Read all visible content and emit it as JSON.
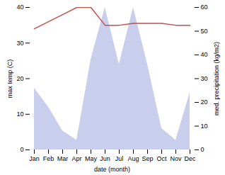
{
  "chart_data": {
    "type": "line",
    "xlabel": "date (month)",
    "ylabel": "max temp (C)",
    "y2label": "med. precipitation (kg/m2)",
    "categories": [
      "Jan",
      "Feb",
      "Mar",
      "Apr",
      "May",
      "Jun",
      "Jul",
      "Aug",
      "Sep",
      "Oct",
      "Nov",
      "Dec"
    ],
    "series": [
      {
        "name": "med. precipitation (kg/m2)",
        "type": "area",
        "axis": "y2",
        "color": "#aab4e0",
        "values": [
          26,
          18,
          8,
          4,
          38,
          60,
          36,
          60,
          36,
          9,
          4,
          24
        ]
      },
      {
        "name": "max temp (C)",
        "type": "line",
        "color": "#c0504d",
        "values": [
          34,
          36,
          38,
          40,
          40,
          35,
          35,
          35.5,
          35.5,
          35.5,
          35,
          35
        ]
      }
    ],
    "ylim": [
      0,
      40
    ],
    "yticks": [
      0,
      10,
      20,
      30,
      40
    ],
    "y2lim": [
      0,
      60
    ],
    "y2ticks": [
      0,
      10,
      20,
      30,
      40,
      50,
      60
    ],
    "grid": false
  }
}
